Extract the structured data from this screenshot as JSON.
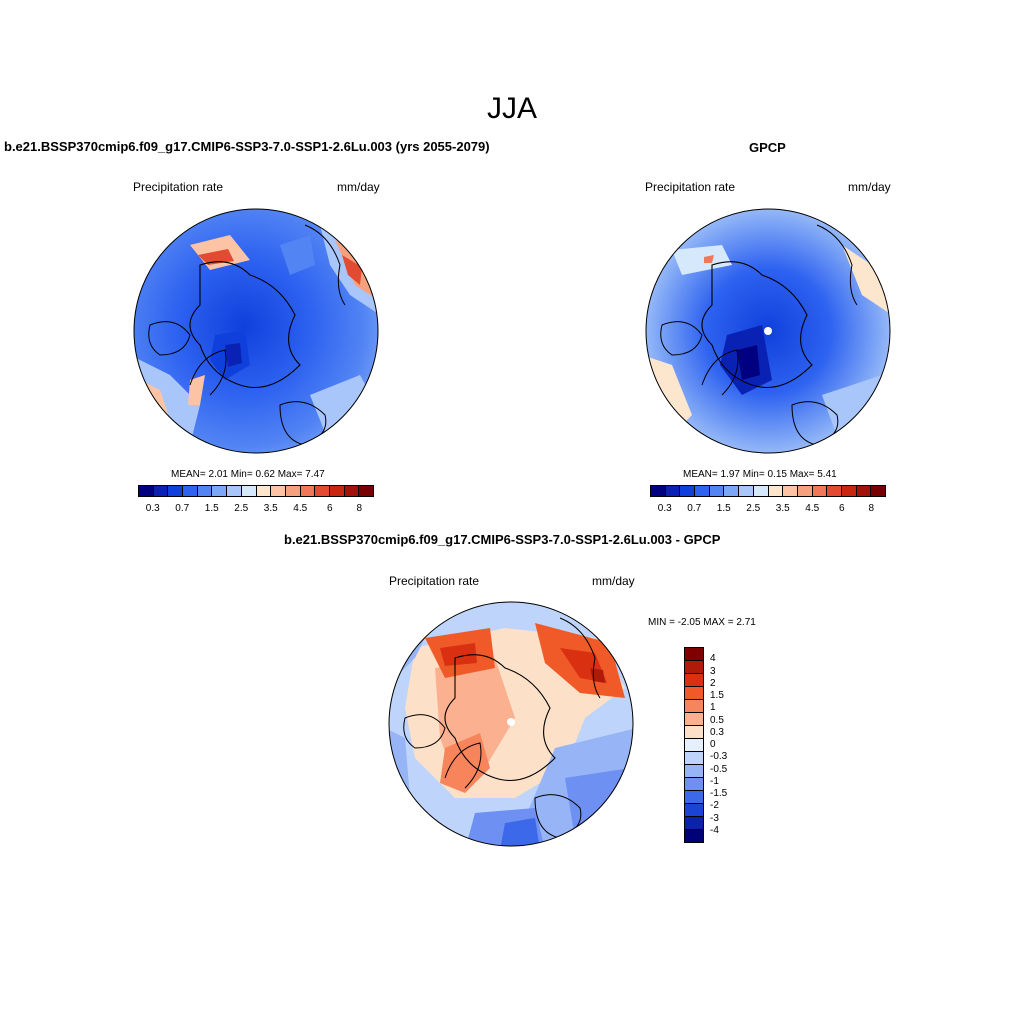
{
  "title": "JJA",
  "colors": {
    "seq": [
      "#000080",
      "#0a22b4",
      "#1040dc",
      "#2e62f0",
      "#5284f4",
      "#7ea6f6",
      "#a8c6fa",
      "#d6e8fc",
      "#fde6ce",
      "#fcc4a4",
      "#f7a07e",
      "#f2775a",
      "#e34a32",
      "#c82612",
      "#a01308",
      "#780000"
    ],
    "diff": [
      "#800000",
      "#b01a0a",
      "#d83010",
      "#f05a28",
      "#f7845a",
      "#fbb090",
      "#fde0c8",
      "#e6f0fc",
      "#bed4fa",
      "#96b4f6",
      "#6e90f2",
      "#3c68ea",
      "#1c44d2",
      "#0c22a8",
      "#000078"
    ]
  },
  "panels": {
    "model": {
      "title": "b.e21.BSSP370cmip6.f09_g17.CMIP6-SSP3-7.0-SSP1-2.6Lu.003 (yrs 2055-2079)",
      "left_label": "Precipitation rate",
      "right_label": "mm/day",
      "stats": "MEAN=   2.01  Min=    0.62  Max=   7.47",
      "colorbar_labels": [
        "0.3",
        "0.7",
        "1.5",
        "2.5",
        "3.5",
        "4.5",
        "6",
        "8"
      ]
    },
    "obs": {
      "title": "GPCP",
      "left_label": "Precipitation rate",
      "right_label": "mm/day",
      "stats": "MEAN=   1.97  Min=    0.15  Max=   5.41",
      "colorbar_labels": [
        "0.3",
        "0.7",
        "1.5",
        "2.5",
        "3.5",
        "4.5",
        "6",
        "8"
      ]
    },
    "diff": {
      "title": "b.e21.BSSP370cmip6.f09_g17.CMIP6-SSP3-7.0-SSP1-2.6Lu.003 - GPCP",
      "left_label": "Precipitation rate",
      "right_label": "mm/day",
      "stats": "MIN =  -2.05 MAX =   2.71",
      "colorbar_labels": [
        "4",
        "3",
        "2",
        "1.5",
        "1",
        "0.5",
        "0.3",
        "0",
        "-0.3",
        "-0.5",
        "-1",
        "-1.5",
        "-2",
        "-3",
        "-4"
      ]
    }
  }
}
